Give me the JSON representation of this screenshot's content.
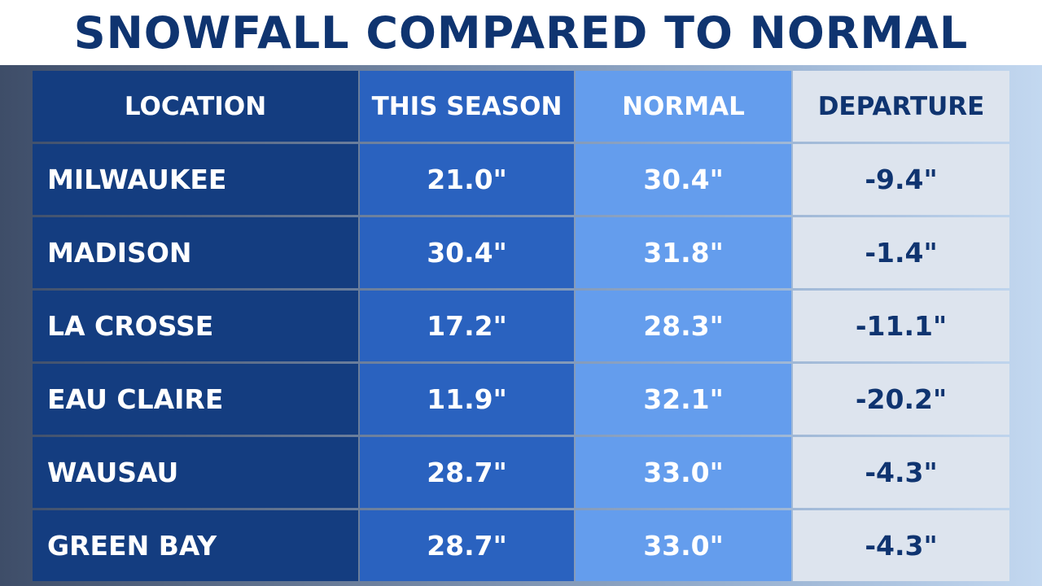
{
  "title": "SNOWFALL COMPARED TO NORMAL",
  "colors": {
    "title": "#0f3470",
    "location_col": "#143d80",
    "season_col": "#2a62bf",
    "normal_col": "#649ded",
    "departure_col": "#dde4ee"
  },
  "chart_data": {
    "type": "table",
    "title": "SNOWFALL COMPARED TO NORMAL",
    "columns": [
      "LOCATION",
      "THIS SEASON",
      "NORMAL",
      "DEPARTURE"
    ],
    "rows": [
      [
        "MILWAUKEE",
        "21.0\"",
        "30.4\"",
        "-9.4\""
      ],
      [
        "MADISON",
        "30.4\"",
        "31.8\"",
        "-1.4\""
      ],
      [
        "LA CROSSE",
        "17.2\"",
        "28.3\"",
        "-11.1\""
      ],
      [
        "EAU CLAIRE",
        "11.9\"",
        "32.1\"",
        "-20.2\""
      ],
      [
        "WAUSAU",
        "28.7\"",
        "33.0\"",
        "-4.3\""
      ],
      [
        "GREEN BAY",
        "28.7\"",
        "33.0\"",
        "-4.3\""
      ]
    ]
  }
}
